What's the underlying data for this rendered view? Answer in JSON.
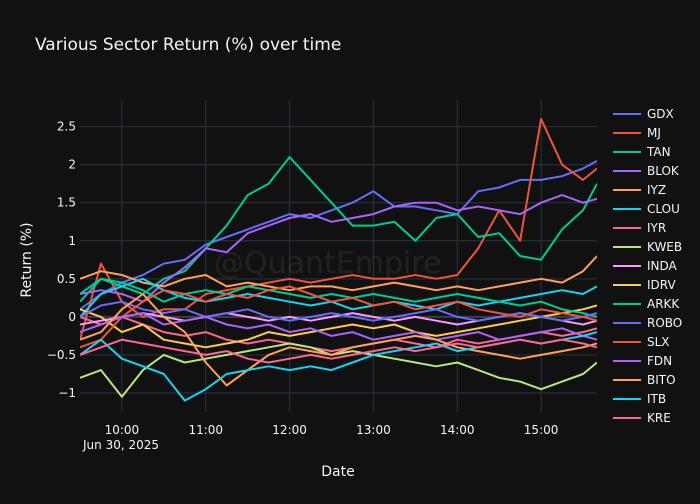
{
  "chart_data": {
    "type": "line",
    "title": "Various Sector Return (%) over time",
    "watermark": "@QuantEmpire",
    "xlabel": "Date",
    "ylabel": "Return (%)",
    "x_date_label": "Jun 30, 2025",
    "xlim": [
      "09:30",
      "15:40"
    ],
    "ylim": [
      -1.25,
      2.85
    ],
    "grid": true,
    "legend_position": "right",
    "x_ticks": [
      "10:00",
      "11:00",
      "12:00",
      "13:00",
      "14:00",
      "15:00"
    ],
    "y_ticks": [
      {
        "value": 2.5,
        "label": "2.5"
      },
      {
        "value": 2,
        "label": "2"
      },
      {
        "value": 1.5,
        "label": "1.5"
      },
      {
        "value": 1,
        "label": "1"
      },
      {
        "value": 0.5,
        "label": "0.5"
      },
      {
        "value": 0,
        "label": "0"
      },
      {
        "value": -0.5,
        "label": "−0.5"
      },
      {
        "value": -1,
        "label": "−1"
      }
    ],
    "x": [
      "09:30",
      "09:45",
      "10:00",
      "10:15",
      "10:30",
      "10:45",
      "11:00",
      "11:15",
      "11:30",
      "11:45",
      "12:00",
      "12:15",
      "12:30",
      "12:45",
      "13:00",
      "13:15",
      "13:30",
      "13:45",
      "14:00",
      "14:15",
      "14:30",
      "14:45",
      "15:00",
      "15:15",
      "15:30",
      "15:40"
    ],
    "series": [
      {
        "name": "GDX",
        "color": "#636efa",
        "values": [
          0.1,
          0.3,
          0.45,
          0.55,
          0.7,
          0.75,
          0.95,
          1.05,
          1.15,
          1.25,
          1.35,
          1.3,
          1.4,
          1.5,
          1.65,
          1.45,
          1.45,
          1.4,
          1.35,
          1.65,
          1.7,
          1.8,
          1.8,
          1.85,
          1.95,
          2.05
        ]
      },
      {
        "name": "MJ",
        "color": "#ef553b",
        "values": [
          -0.3,
          0.7,
          0.2,
          0.0,
          0.1,
          0.1,
          0.3,
          0.35,
          0.4,
          0.45,
          0.5,
          0.45,
          0.5,
          0.55,
          0.5,
          0.5,
          0.55,
          0.5,
          0.55,
          0.9,
          1.4,
          1.0,
          2.6,
          2.0,
          1.8,
          1.95
        ]
      },
      {
        "name": "TAN",
        "color": "#00cc96",
        "values": [
          0.2,
          0.5,
          0.4,
          0.3,
          0.5,
          0.6,
          0.9,
          1.2,
          1.6,
          1.75,
          2.1,
          1.8,
          1.5,
          1.2,
          1.2,
          1.25,
          1.0,
          1.3,
          1.35,
          1.05,
          1.1,
          0.8,
          0.75,
          1.15,
          1.4,
          1.75
        ]
      },
      {
        "name": "BLOK",
        "color": "#ab63fa",
        "values": [
          0.3,
          0.35,
          0.3,
          0.2,
          0.45,
          0.65,
          0.9,
          0.85,
          1.1,
          1.2,
          1.3,
          1.35,
          1.25,
          1.3,
          1.35,
          1.45,
          1.5,
          1.5,
          1.4,
          1.45,
          1.4,
          1.35,
          1.5,
          1.6,
          1.5,
          1.55
        ]
      },
      {
        "name": "IYZ",
        "color": "#ffa15a",
        "values": [
          0.5,
          0.6,
          0.55,
          0.45,
          0.4,
          0.5,
          0.55,
          0.4,
          0.45,
          0.4,
          0.35,
          0.4,
          0.4,
          0.35,
          0.4,
          0.45,
          0.4,
          0.35,
          0.4,
          0.35,
          0.4,
          0.45,
          0.5,
          0.45,
          0.6,
          0.8
        ]
      },
      {
        "name": "CLOU",
        "color": "#19d3f3",
        "values": [
          0.0,
          0.3,
          0.4,
          0.5,
          0.35,
          0.25,
          0.2,
          0.25,
          0.3,
          0.25,
          0.2,
          0.15,
          0.2,
          0.1,
          0.15,
          0.2,
          0.15,
          0.1,
          0.2,
          0.15,
          0.2,
          0.25,
          0.3,
          0.35,
          0.3,
          0.4
        ]
      },
      {
        "name": "IYR",
        "color": "#ff6692",
        "values": [
          0.0,
          -0.1,
          0.0,
          -0.1,
          -0.2,
          -0.25,
          -0.2,
          -0.3,
          -0.35,
          -0.3,
          -0.35,
          -0.4,
          -0.45,
          -0.4,
          -0.35,
          -0.3,
          -0.35,
          -0.4,
          -0.3,
          -0.35,
          -0.3,
          -0.25,
          -0.2,
          -0.25,
          -0.2,
          -0.15
        ]
      },
      {
        "name": "KWEB",
        "color": "#b6e880",
        "values": [
          -0.8,
          -0.7,
          -1.05,
          -0.7,
          -0.5,
          -0.6,
          -0.55,
          -0.5,
          -0.45,
          -0.4,
          -0.35,
          -0.4,
          -0.5,
          -0.45,
          -0.5,
          -0.55,
          -0.6,
          -0.65,
          -0.6,
          -0.7,
          -0.8,
          -0.85,
          -0.95,
          -0.85,
          -0.75,
          -0.6
        ]
      },
      {
        "name": "INDA",
        "color": "#ff97ff",
        "values": [
          -0.1,
          -0.05,
          0.0,
          0.05,
          0.0,
          -0.05,
          0.0,
          0.05,
          0.0,
          -0.05,
          0.0,
          -0.05,
          0.0,
          0.05,
          0.0,
          -0.05,
          0.0,
          -0.05,
          -0.1,
          -0.05,
          0.0,
          0.05,
          0.0,
          -0.05,
          -0.1,
          -0.05
        ]
      },
      {
        "name": "IDRV",
        "color": "#fecb52",
        "values": [
          0.1,
          0.0,
          -0.2,
          -0.1,
          -0.3,
          -0.35,
          -0.4,
          -0.35,
          -0.3,
          -0.2,
          -0.25,
          -0.2,
          -0.15,
          -0.1,
          -0.15,
          -0.1,
          -0.2,
          -0.25,
          -0.2,
          -0.15,
          -0.1,
          -0.05,
          0.0,
          0.05,
          0.1,
          0.15
        ]
      },
      {
        "name": "ARKK",
        "color": "#00cc96",
        "values": [
          0.3,
          0.5,
          0.45,
          0.35,
          0.2,
          0.3,
          0.35,
          0.3,
          0.4,
          0.35,
          0.3,
          0.25,
          0.3,
          0.25,
          0.3,
          0.25,
          0.2,
          0.25,
          0.3,
          0.25,
          0.2,
          0.15,
          0.2,
          0.1,
          0.05,
          0.0
        ]
      },
      {
        "name": "ROBO",
        "color": "#636efa",
        "values": [
          0.0,
          0.15,
          0.2,
          0.1,
          0.05,
          0.1,
          0.0,
          0.05,
          0.1,
          0.0,
          -0.05,
          0.0,
          0.05,
          0.0,
          -0.05,
          0.0,
          0.05,
          0.1,
          0.0,
          -0.05,
          0.0,
          0.05,
          0.0,
          -0.05,
          0.0,
          0.05
        ]
      },
      {
        "name": "SLX",
        "color": "#ef553b",
        "values": [
          -0.4,
          -0.3,
          0.0,
          0.2,
          0.35,
          0.3,
          0.2,
          0.3,
          0.25,
          0.35,
          0.4,
          0.3,
          0.2,
          0.25,
          0.15,
          0.2,
          0.1,
          0.15,
          0.2,
          0.1,
          0.05,
          0.0,
          0.1,
          0.05,
          0.0,
          -0.05
        ]
      },
      {
        "name": "FDN",
        "color": "#ab63fa",
        "values": [
          -0.2,
          -0.1,
          0.0,
          0.05,
          -0.1,
          -0.05,
          0.0,
          -0.1,
          -0.15,
          -0.1,
          -0.2,
          -0.15,
          -0.25,
          -0.2,
          -0.3,
          -0.25,
          -0.2,
          -0.3,
          -0.25,
          -0.2,
          -0.3,
          -0.25,
          -0.2,
          -0.15,
          -0.25,
          -0.3
        ]
      },
      {
        "name": "BITO",
        "color": "#ffa15a",
        "values": [
          -0.3,
          -0.2,
          0.1,
          0.3,
          0.0,
          -0.2,
          -0.6,
          -0.9,
          -0.7,
          -0.5,
          -0.4,
          -0.45,
          -0.5,
          -0.4,
          -0.35,
          -0.3,
          -0.25,
          -0.3,
          -0.4,
          -0.45,
          -0.5,
          -0.55,
          -0.5,
          -0.45,
          -0.4,
          -0.35
        ]
      },
      {
        "name": "ITB",
        "color": "#19d3f3",
        "values": [
          -0.5,
          -0.3,
          -0.55,
          -0.65,
          -0.75,
          -1.1,
          -0.95,
          -0.75,
          -0.7,
          -0.65,
          -0.7,
          -0.65,
          -0.7,
          -0.6,
          -0.5,
          -0.45,
          -0.4,
          -0.35,
          -0.45,
          -0.4,
          -0.35,
          -0.3,
          -0.35,
          -0.3,
          -0.25,
          -0.2
        ]
      },
      {
        "name": "KRE",
        "color": "#ff6692",
        "values": [
          -0.5,
          -0.4,
          -0.3,
          -0.35,
          -0.4,
          -0.45,
          -0.5,
          -0.45,
          -0.55,
          -0.6,
          -0.55,
          -0.5,
          -0.55,
          -0.5,
          -0.45,
          -0.4,
          -0.45,
          -0.4,
          -0.35,
          -0.4,
          -0.35,
          -0.3,
          -0.35,
          -0.3,
          -0.35,
          -0.4
        ]
      }
    ]
  }
}
